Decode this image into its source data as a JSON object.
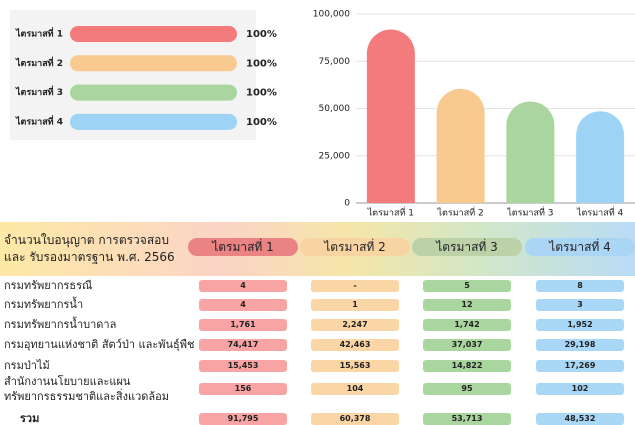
{
  "progress": {
    "items": [
      {
        "label": "ไตรมาสที่ 1",
        "value": 100,
        "value_label": "100%",
        "color": "#f47b7b"
      },
      {
        "label": "ไตรมาสที่ 2",
        "value": 100,
        "value_label": "100%",
        "color": "#f8ca90"
      },
      {
        "label": "ไตรมาสที่ 3",
        "value": 100,
        "value_label": "100%",
        "color": "#a9d59f"
      },
      {
        "label": "ไตรมาสที่ 4",
        "value": 100,
        "value_label": "100%",
        "color": "#9dd4f6"
      }
    ]
  },
  "chart_data": {
    "type": "bar",
    "categories": [
      "ไตรมาสที่ 1",
      "ไตรมาสที่ 2",
      "ไตรมาสที่ 3",
      "ไตรมาสที่ 4"
    ],
    "values": [
      91795,
      60378,
      53713,
      48532
    ],
    "colors": [
      "#f47b7b",
      "#f8ca90",
      "#a9d59f",
      "#9dd4f6"
    ],
    "ylim": [
      0,
      100000
    ],
    "yticks": [
      0,
      {
        "value": 25000,
        "label": "25,000"
      },
      {
        "value": 50000,
        "label": "50,000"
      },
      {
        "value": 75000,
        "label": "75,000"
      },
      {
        "value": 100000,
        "label": "100,000"
      }
    ],
    "grid": true
  },
  "table": {
    "title": "จำนวนใบอนุญาต การตรวจสอบ และ รับรองมาตรฐาน พ.ศ. 2566",
    "columns": [
      "ไตรมาสที่ 1",
      "ไตรมาสที่ 2",
      "ไตรมาสที่ 3",
      "ไตรมาสที่ 4"
    ],
    "column_colors": [
      "#ea8383",
      "#f9d4a3",
      "#bcd1a8",
      "#abd5f5"
    ],
    "cell_colors": [
      "#f8a4a4",
      "#fad6a6",
      "#a9d59f",
      "#a9d8f7"
    ],
    "rows": [
      [
        "กรมทรัพยากรธรณี",
        "4",
        "-",
        "5",
        "8"
      ],
      [
        "กรมทรัพยากรน้ำ",
        "4",
        "1",
        "12",
        "3"
      ],
      [
        "กรมทรัพยากรน้ำบาดาล",
        "1,761",
        "2,247",
        "1,742",
        "1,952"
      ],
      [
        "กรมอุทยานแห่งชาติ สัตว์ป่า และพันธุ์พืช",
        "74,417",
        "42,463",
        "37,037",
        "29,198"
      ],
      [
        "กรมป่าไม้",
        "15,453",
        "15,563",
        "14,822",
        "17,269"
      ],
      [
        "สำนักงานนโยบายและแผนทรัพยากรธรรมชาติและสิ่งแวดล้อม",
        "156",
        "104",
        "95",
        "102"
      ],
      [
        "รวม",
        "91,795",
        "60,378",
        "53,713",
        "48,532"
      ]
    ]
  }
}
